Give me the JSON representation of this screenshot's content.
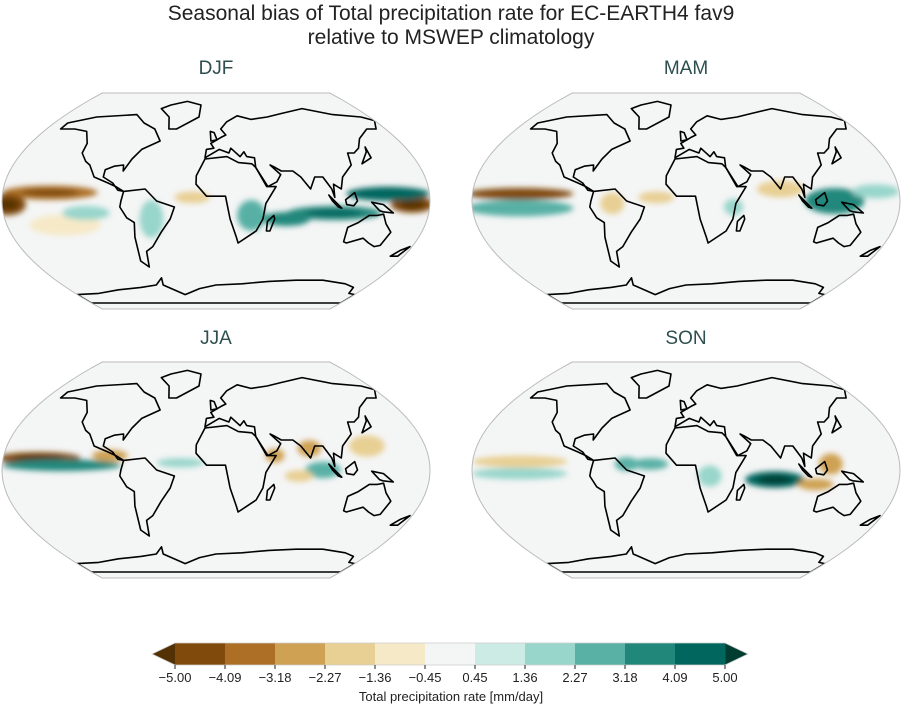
{
  "title": {
    "line1": "Seasonal bias of Total precipitation rate for EC-EARTH4 fav9",
    "line2": "relative to MSWEP climatology"
  },
  "panels": [
    {
      "label": "DJF"
    },
    {
      "label": "MAM"
    },
    {
      "label": "JJA"
    },
    {
      "label": "SON"
    }
  ],
  "colorbar": {
    "label": "Total precipitation rate [mm/day]",
    "ticks": [
      "−5.00",
      "−4.09",
      "−3.18",
      "−2.27",
      "−1.36",
      "−0.45",
      "0.45",
      "1.36",
      "2.27",
      "3.18",
      "4.09",
      "5.00"
    ],
    "levels": [
      -5.0,
      -4.09,
      -3.18,
      -2.27,
      -1.36,
      -0.45,
      0.45,
      1.36,
      2.27,
      3.18,
      4.09,
      5.0
    ],
    "extend": "both",
    "colors": [
      "#543005",
      "#7f4a0c",
      "#ac6f25",
      "#cfa153",
      "#e8cf93",
      "#f6e9c8",
      "#f4f5f5",
      "#cdebe5",
      "#98d5cb",
      "#59b0a5",
      "#21877b",
      "#01665e",
      "#003c30"
    ]
  },
  "map": {
    "projection": "Robinson",
    "ocean_color": "#f4f5f5",
    "coastline_color": "#000000"
  }
}
